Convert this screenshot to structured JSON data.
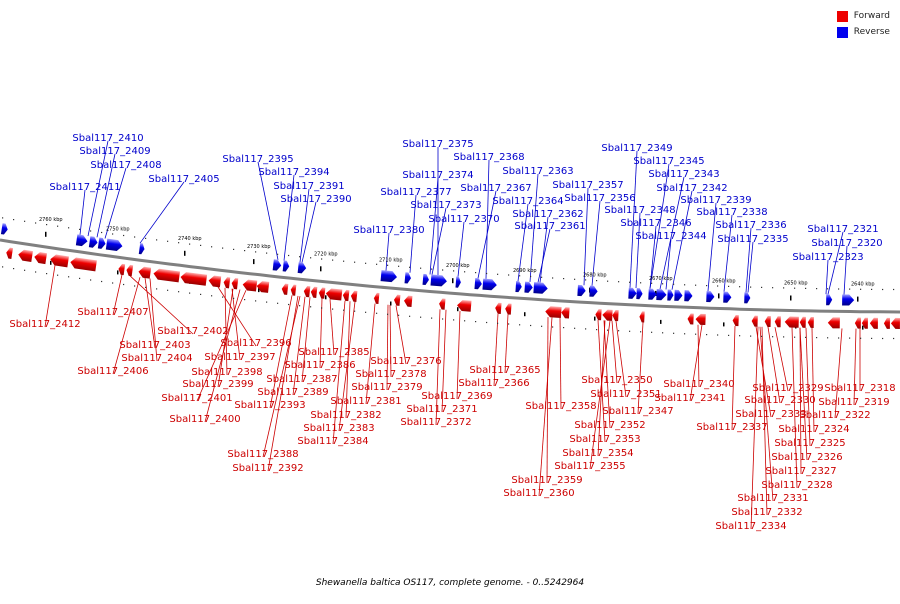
{
  "legend": {
    "forward": {
      "label": "Forward",
      "color": "#ee0000"
    },
    "reverse": {
      "label": "Reverse",
      "color": "#0000ee"
    }
  },
  "caption": "Shewanella baltica OS117, complete genome. - 0..5242964",
  "scale_ticks": [
    "2760 kbp",
    "2750 kbp",
    "2740 kbp",
    "2730 kbp",
    "2720 kbp",
    "2710 kbp",
    "2700 kbp",
    "2690 kbp",
    "2680 kbp",
    "2670 kbp",
    "2660 kbp",
    "2650 kbp",
    "2640 kbp"
  ],
  "reverse_genes": [
    "Sbal117_2410",
    "Sbal117_2409",
    "Sbal117_2408",
    "Sbal117_2411",
    "Sbal117_2405",
    "Sbal117_2395",
    "Sbal117_2394",
    "Sbal117_2391",
    "Sbal117_2390",
    "Sbal117_2375",
    "Sbal117_2368",
    "Sbal117_2374",
    "Sbal117_2377",
    "Sbal117_2367",
    "Sbal117_2363",
    "Sbal117_2373",
    "Sbal117_2364",
    "Sbal117_2370",
    "Sbal117_2362",
    "Sbal117_2361",
    "Sbal117_2380",
    "Sbal117_2349",
    "Sbal117_2345",
    "Sbal117_2343",
    "Sbal117_2342",
    "Sbal117_2357",
    "Sbal117_2356",
    "Sbal117_2339",
    "Sbal117_2348",
    "Sbal117_2338",
    "Sbal117_2346",
    "Sbal117_2336",
    "Sbal117_2344",
    "Sbal117_2335",
    "Sbal117_2321",
    "Sbal117_2320",
    "Sbal117_2323"
  ],
  "forward_genes": [
    "Sbal117_2412",
    "Sbal117_2407",
    "Sbal117_2402",
    "Sbal117_2403",
    "Sbal117_2404",
    "Sbal117_2406",
    "Sbal117_2396",
    "Sbal117_2397",
    "Sbal117_2398",
    "Sbal117_2399",
    "Sbal117_2401",
    "Sbal117_2400",
    "Sbal117_2385",
    "Sbal117_2386",
    "Sbal117_2387",
    "Sbal117_2389",
    "Sbal117_2393",
    "Sbal117_2388",
    "Sbal117_2392",
    "Sbal117_2376",
    "Sbal117_2378",
    "Sbal117_2379",
    "Sbal117_2381",
    "Sbal117_2382",
    "Sbal117_2383",
    "Sbal117_2384",
    "Sbal117_2369",
    "Sbal117_2371",
    "Sbal117_2372",
    "Sbal117_2365",
    "Sbal117_2366",
    "Sbal117_2358",
    "Sbal117_2359",
    "Sbal117_2360",
    "Sbal117_2350",
    "Sbal117_2351",
    "Sbal117_2347",
    "Sbal117_2352",
    "Sbal117_2353",
    "Sbal117_2354",
    "Sbal117_2355",
    "Sbal117_2340",
    "Sbal117_2341",
    "Sbal117_2337",
    "Sbal117_2329",
    "Sbal117_2330",
    "Sbal117_2333",
    "Sbal117_2324",
    "Sbal117_2325",
    "Sbal117_2326",
    "Sbal117_2327",
    "Sbal117_2328",
    "Sbal117_2331",
    "Sbal117_2332",
    "Sbal117_2334",
    "Sbal117_2318",
    "Sbal117_2319",
    "Sbal117_2322"
  ]
}
